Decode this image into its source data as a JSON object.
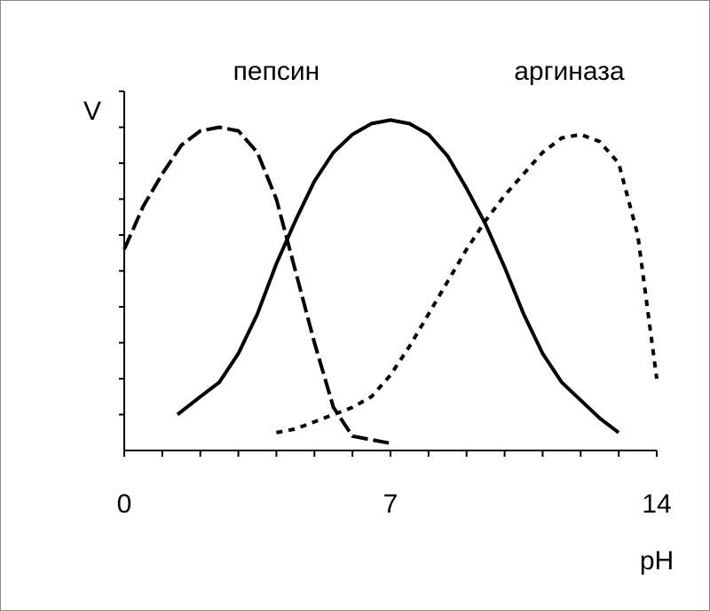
{
  "chart_data": {
    "type": "line",
    "title": "",
    "xlabel": "pH",
    "ylabel": "V",
    "xlim": [
      0,
      14
    ],
    "ylim": [
      0,
      1
    ],
    "x_tick_labels": [
      "0",
      "7",
      "14"
    ],
    "x_ticks_minor": [
      0,
      1,
      2,
      3,
      4,
      5,
      6,
      7,
      8,
      9,
      10,
      11,
      12,
      13,
      14
    ],
    "y_ticks_minor": [
      0.1,
      0.2,
      0.3,
      0.4,
      0.5,
      0.6,
      0.7,
      0.8,
      0.9
    ],
    "grid": false,
    "legend": "none",
    "annotations": [
      {
        "text": "пепсин",
        "near_x": 4.0
      },
      {
        "text": "аргиназа",
        "near_x": 11.7
      }
    ],
    "series": [
      {
        "style": "dashed",
        "x": [
          0,
          0.5,
          1,
          1.5,
          2,
          2.5,
          3,
          3.5,
          4,
          4.5,
          5,
          5.5,
          6,
          6.5,
          7
        ],
        "values": [
          0.56,
          0.68,
          0.77,
          0.85,
          0.89,
          0.9,
          0.89,
          0.83,
          0.7,
          0.5,
          0.3,
          0.12,
          0.04,
          0.03,
          0.02
        ]
      },
      {
        "style": "solid",
        "x": [
          1.4,
          2,
          2.5,
          3,
          3.5,
          4,
          4.5,
          5,
          5.5,
          6,
          6.5,
          7,
          7.5,
          8,
          8.5,
          9,
          9.5,
          10,
          10.5,
          11,
          11.5,
          12,
          12.5,
          13
        ],
        "values": [
          0.1,
          0.15,
          0.19,
          0.27,
          0.38,
          0.52,
          0.64,
          0.75,
          0.83,
          0.88,
          0.91,
          0.92,
          0.91,
          0.88,
          0.82,
          0.73,
          0.63,
          0.51,
          0.38,
          0.27,
          0.19,
          0.14,
          0.09,
          0.05
        ]
      },
      {
        "style": "dotted",
        "x": [
          4,
          4.5,
          5,
          5.5,
          6,
          6.5,
          7,
          7.5,
          8,
          8.5,
          9,
          9.5,
          10,
          10.5,
          11,
          11.5,
          12,
          12.5,
          13,
          13.5,
          14
        ],
        "values": [
          0.05,
          0.06,
          0.08,
          0.1,
          0.12,
          0.15,
          0.21,
          0.29,
          0.38,
          0.47,
          0.56,
          0.64,
          0.71,
          0.77,
          0.83,
          0.87,
          0.88,
          0.86,
          0.8,
          0.6,
          0.2
        ]
      }
    ]
  }
}
